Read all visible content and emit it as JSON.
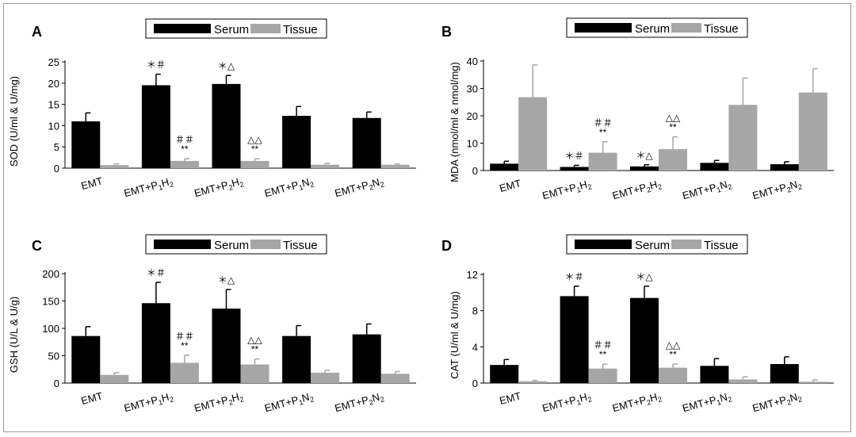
{
  "colors": {
    "serum": "#000000",
    "tissue": "#a6a6a6",
    "axis": "#000000",
    "frame": "#9a9a9a"
  },
  "chart_data": [
    {
      "type": "bar",
      "panel_label": "A",
      "ylabel": "SOD (U/ml & U/mg)",
      "ylim": [
        0,
        25
      ],
      "yticks": [
        "0",
        "5",
        "10",
        "15",
        "20",
        "25"
      ],
      "ytick_values": [
        0,
        5,
        10,
        15,
        20,
        25
      ],
      "categories": [
        {
          "base": "EMT",
          "sub1": "",
          "mid": "",
          "sub2": ""
        },
        {
          "base": "EMT+P",
          "sub1": "1",
          "mid": "H",
          "sub2": "2"
        },
        {
          "base": "EMT+P",
          "sub1": "2",
          "mid": "H",
          "sub2": "2"
        },
        {
          "base": "EMT+P",
          "sub1": "1",
          "mid": "N",
          "sub2": "2"
        },
        {
          "base": "EMT+P",
          "sub1": "2",
          "mid": "N",
          "sub2": "2"
        }
      ],
      "legend": {
        "serum": "Serum",
        "tissue": "Tissue"
      },
      "series": [
        {
          "name": "Serum",
          "values": [
            11.0,
            19.5,
            19.8,
            12.3,
            11.8
          ],
          "errors": [
            2.0,
            2.6,
            2.0,
            2.2,
            1.4
          ]
        },
        {
          "name": "Tissue",
          "values": [
            0.7,
            1.7,
            1.7,
            0.8,
            0.8
          ],
          "errors": [
            0.3,
            0.5,
            0.5,
            0.3,
            0.2
          ]
        }
      ],
      "annotations": [
        {
          "cat": 1,
          "series": 0,
          "lines": [
            "＊＃"
          ]
        },
        {
          "cat": 2,
          "series": 0,
          "lines": [
            "＊△"
          ]
        },
        {
          "cat": 1,
          "series": 1,
          "lines": [
            "＃＃",
            "**"
          ]
        },
        {
          "cat": 2,
          "series": 1,
          "lines": [
            "△△",
            "**"
          ]
        }
      ]
    },
    {
      "type": "bar",
      "panel_label": "B",
      "ylabel": "MDA (nmol/ml & nmol/mg)",
      "ylim": [
        0,
        40
      ],
      "yticks": [
        "0",
        "10",
        "20",
        "30",
        "40"
      ],
      "ytick_values": [
        0,
        10,
        20,
        30,
        40
      ],
      "categories": [
        {
          "base": "EMT",
          "sub1": "",
          "mid": "",
          "sub2": ""
        },
        {
          "base": "EMT+P",
          "sub1": "1",
          "mid": "H",
          "sub2": "2"
        },
        {
          "base": "EMT+P",
          "sub1": "2",
          "mid": "H",
          "sub2": "2"
        },
        {
          "base": "EMT+P",
          "sub1": "1",
          "mid": "N",
          "sub2": "2"
        },
        {
          "base": "EMT+P",
          "sub1": "2",
          "mid": "N",
          "sub2": "2"
        }
      ],
      "legend": {
        "serum": "Serum",
        "tissue": "Tissue"
      },
      "series": [
        {
          "name": "Serum",
          "values": [
            2.5,
            1.3,
            1.5,
            2.8,
            2.3
          ],
          "errors": [
            0.9,
            0.6,
            0.6,
            0.9,
            0.9
          ]
        },
        {
          "name": "Tissue",
          "values": [
            26.8,
            6.5,
            7.8,
            24.0,
            28.5
          ],
          "errors": [
            11.8,
            4.0,
            4.5,
            9.8,
            8.7
          ]
        }
      ],
      "annotations": [
        {
          "cat": 1,
          "series": 0,
          "lines": [
            "＊＃"
          ]
        },
        {
          "cat": 2,
          "series": 0,
          "lines": [
            "＊△"
          ]
        },
        {
          "cat": 1,
          "series": 1,
          "lines": [
            "＃＃",
            "**"
          ]
        },
        {
          "cat": 2,
          "series": 1,
          "lines": [
            "△△",
            "**"
          ]
        }
      ]
    },
    {
      "type": "bar",
      "panel_label": "C",
      "ylabel": "GSH (U/L & U/g)",
      "ylim": [
        0,
        200
      ],
      "yticks": [
        "0",
        "50",
        "100",
        "150",
        "200"
      ],
      "ytick_values": [
        0,
        50,
        100,
        150,
        200
      ],
      "categories": [
        {
          "base": "EMT",
          "sub1": "",
          "mid": "",
          "sub2": ""
        },
        {
          "base": "EMT+P",
          "sub1": "1",
          "mid": "H",
          "sub2": "2"
        },
        {
          "base": "EMT+P",
          "sub1": "2",
          "mid": "H",
          "sub2": "2"
        },
        {
          "base": "EMT+P",
          "sub1": "1",
          "mid": "N",
          "sub2": "2"
        },
        {
          "base": "EMT+P",
          "sub1": "2",
          "mid": "N",
          "sub2": "2"
        }
      ],
      "legend": {
        "serum": "Serum",
        "tissue": "Tissue"
      },
      "series": [
        {
          "name": "Serum",
          "values": [
            86,
            146,
            136,
            86,
            89
          ],
          "errors": [
            17,
            38,
            35,
            19,
            19
          ]
        },
        {
          "name": "Tissue",
          "values": [
            15,
            37,
            34,
            19,
            17
          ],
          "errors": [
            4,
            14,
            10,
            4,
            4
          ]
        }
      ],
      "annotations": [
        {
          "cat": 1,
          "series": 0,
          "lines": [
            "＊＃"
          ]
        },
        {
          "cat": 2,
          "series": 0,
          "lines": [
            "＊△"
          ]
        },
        {
          "cat": 1,
          "series": 1,
          "lines": [
            "＃＃",
            "**"
          ]
        },
        {
          "cat": 2,
          "series": 1,
          "lines": [
            "△△",
            "**"
          ]
        }
      ]
    },
    {
      "type": "bar",
      "panel_label": "D",
      "ylabel": "CAT (U/ml & U/mg)",
      "ylim": [
        0,
        12
      ],
      "yticks": [
        "0",
        "4",
        "8",
        "12"
      ],
      "ytick_values": [
        0,
        4,
        8,
        12
      ],
      "categories": [
        {
          "base": "EMT",
          "sub1": "",
          "mid": "",
          "sub2": ""
        },
        {
          "base": "EMT+P",
          "sub1": "1",
          "mid": "H",
          "sub2": "2"
        },
        {
          "base": "EMT+P",
          "sub1": "2",
          "mid": "H",
          "sub2": "2"
        },
        {
          "base": "EMT+P",
          "sub1": "1",
          "mid": "N",
          "sub2": "2"
        },
        {
          "base": "EMT+P",
          "sub1": "2",
          "mid": "N",
          "sub2": "2"
        }
      ],
      "legend": {
        "serum": "Serum",
        "tissue": "Tissue"
      },
      "series": [
        {
          "name": "Serum",
          "values": [
            2.0,
            9.6,
            9.4,
            1.9,
            2.1
          ],
          "errors": [
            0.6,
            1.1,
            1.3,
            0.8,
            0.8
          ]
        },
        {
          "name": "Tissue",
          "values": [
            0.2,
            1.6,
            1.7,
            0.4,
            0.15
          ],
          "errors": [
            0.1,
            0.5,
            0.4,
            0.3,
            0.2
          ]
        }
      ],
      "annotations": [
        {
          "cat": 1,
          "series": 0,
          "lines": [
            "＊＃"
          ]
        },
        {
          "cat": 2,
          "series": 0,
          "lines": [
            "＊△"
          ]
        },
        {
          "cat": 1,
          "series": 1,
          "lines": [
            "＃＃",
            "**"
          ]
        },
        {
          "cat": 2,
          "series": 1,
          "lines": [
            "△△",
            "**"
          ]
        }
      ]
    }
  ]
}
